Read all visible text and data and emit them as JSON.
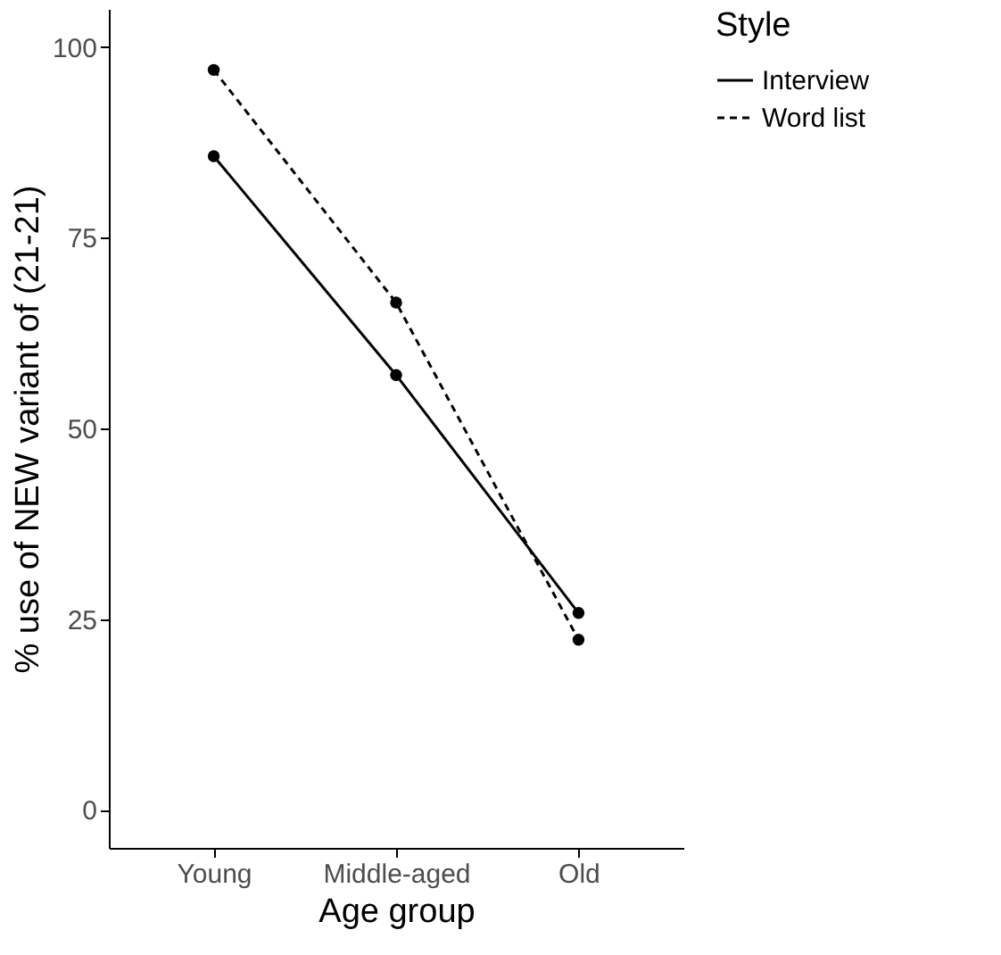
{
  "chart_data": {
    "type": "line",
    "xlabel": "Age group",
    "ylabel": "% use of NEW variant of (21-21)",
    "legend_title": "Style",
    "categories": [
      "Young",
      "Middle-aged",
      "Old"
    ],
    "series": [
      {
        "name": "Interview",
        "color": "#000000",
        "line_style": "solid",
        "values": [
          85.7,
          57,
          25.8
        ]
      },
      {
        "name": "Word list",
        "color": "#000000",
        "line_style": "dashed",
        "values": [
          97,
          66.5,
          22.3
        ]
      }
    ],
    "ylim": [
      -5,
      105
    ],
    "yticks": [
      0,
      25,
      50,
      75,
      100
    ],
    "grid": false,
    "legend": "right",
    "marker": "circle"
  }
}
